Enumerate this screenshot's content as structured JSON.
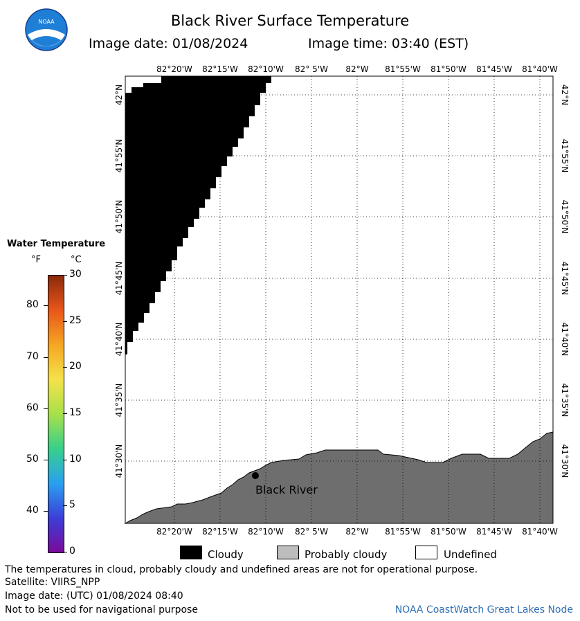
{
  "header": {
    "title": "Black River Surface Temperature",
    "image_date_label": "Image date: 01/08/2024",
    "image_time_label": "Image time: 03:40 (EST)"
  },
  "logo": {
    "text": "NOAA"
  },
  "map": {
    "lon_labels": [
      "82°20'W",
      "82°15'W",
      "82°10'W",
      "82° 5'W",
      "82°W",
      "81°55'W",
      "81°50'W",
      "81°45'W",
      "81°40'W"
    ],
    "lat_labels": [
      "42°N",
      "41°55'N",
      "41°50'N",
      "41°45'N",
      "41°40'N",
      "41°35'N",
      "41°30'N"
    ],
    "location_label": "Black River",
    "colors": {
      "cloudy": "#000000",
      "land": "#6e6e6e",
      "water_undefined": "#ffffff",
      "grid": "#000000"
    }
  },
  "color_scale": {
    "title": "Water Temperature",
    "unit_f": "°F",
    "unit_c": "°C",
    "f_ticks": [
      "80",
      "70",
      "60",
      "50",
      "40"
    ],
    "c_ticks": [
      "30",
      "25",
      "20",
      "15",
      "10",
      "5",
      "0"
    ],
    "range_c": [
      0,
      30
    ],
    "gradient": [
      "#7b0a9a",
      "#3b3fd8",
      "#2aa0f0",
      "#37d08a",
      "#a8e04a",
      "#f5e24a",
      "#f5a623",
      "#e8561a",
      "#8a2a0a"
    ]
  },
  "key": {
    "cloudy": "Cloudy",
    "probably_cloudy": "Probably cloudy",
    "undefined": "Undefined"
  },
  "footer": {
    "disclaimer": "The temperatures in cloud, probably cloudy and undefined areas are not for operational purpose.",
    "satellite": "Satellite: VIIRS_NPP",
    "utc_date": "Image date: (UTC) 01/08/2024  08:40",
    "navigation_note": "Not to be used for navigational purpose",
    "credit": "NOAA CoastWatch Great Lakes Node"
  }
}
